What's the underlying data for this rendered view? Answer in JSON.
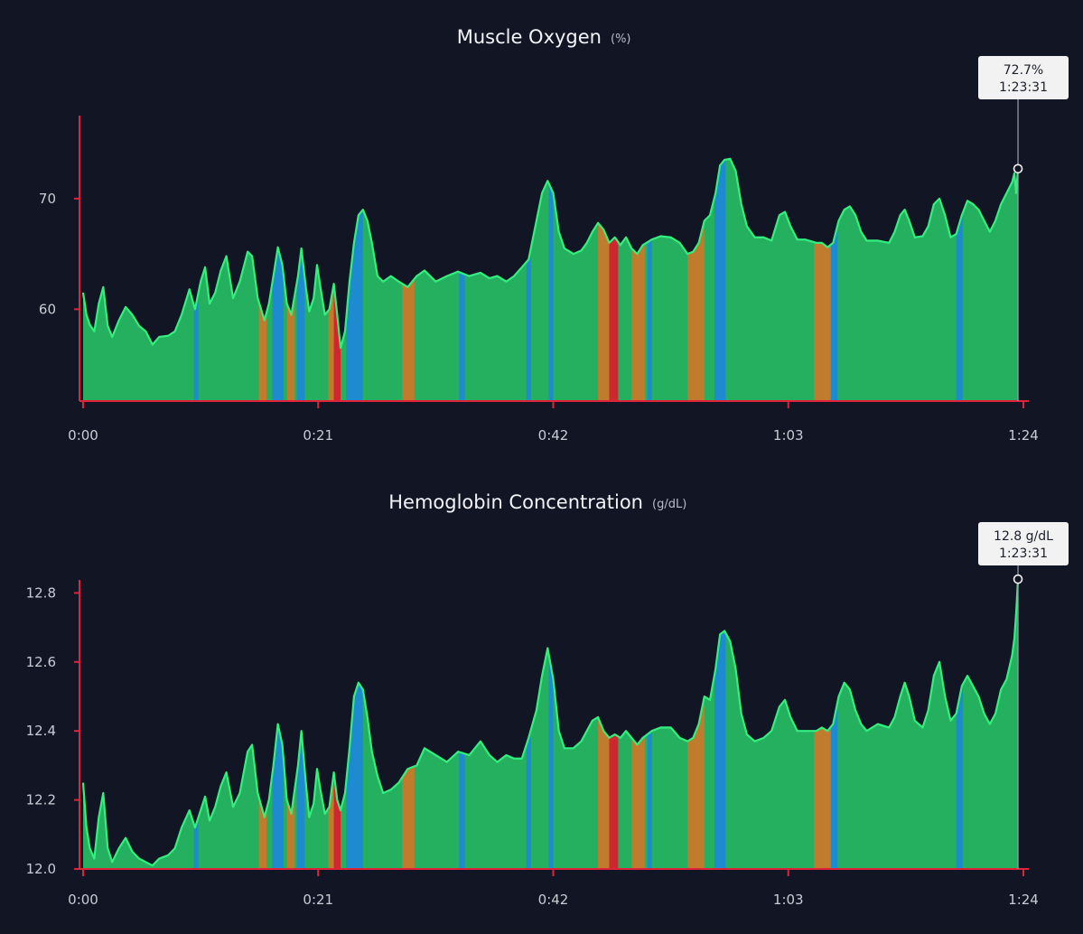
{
  "colors": {
    "background": "#121624",
    "axis": "#e0233b",
    "normal": "#25b060",
    "normal_line": "#33f07e",
    "blue": "#1e88d6",
    "orange": "#c8782a",
    "red": "#d9202c",
    "tooltip_bg": "#f2f2f2",
    "tick_text": "#c9ccd4"
  },
  "chart_data": [
    {
      "type": "area",
      "title": "Muscle Oxygen",
      "unit": "(%)",
      "x_unit": "minutes",
      "xlim": [
        0,
        84
      ],
      "ylim": [
        51.7,
        77.5
      ],
      "yticks": [
        60,
        70
      ],
      "ytick_labels": [
        "60",
        "70"
      ],
      "xticks": [
        0,
        21,
        42,
        63,
        84
      ],
      "xtick_labels": [
        "0:00",
        "0:21",
        "0:42",
        "1:03",
        "1:24"
      ],
      "grid": false,
      "tooltip": {
        "value": "72.7%",
        "time": "1:23:31",
        "x": 83.52,
        "y": 72.7
      },
      "points": [
        [
          0,
          61.5
        ],
        [
          0.3,
          59.5
        ],
        [
          0.6,
          58.6
        ],
        [
          1.0,
          58.0
        ],
        [
          1.4,
          60.5
        ],
        [
          1.8,
          62.0
        ],
        [
          2.2,
          58.5
        ],
        [
          2.6,
          57.5
        ],
        [
          3.2,
          59.0
        ],
        [
          3.8,
          60.2
        ],
        [
          4.4,
          59.5
        ],
        [
          5.0,
          58.5
        ],
        [
          5.6,
          58.0
        ],
        [
          6.2,
          56.8
        ],
        [
          6.8,
          57.5
        ],
        [
          7.6,
          57.6
        ],
        [
          8.2,
          58.0
        ],
        [
          8.8,
          59.5
        ],
        [
          9.5,
          61.8
        ],
        [
          10.0,
          60.0
        ],
        [
          10.5,
          62.5
        ],
        [
          10.9,
          63.8
        ],
        [
          11.3,
          60.5
        ],
        [
          11.8,
          61.5
        ],
        [
          12.3,
          63.5
        ],
        [
          12.8,
          64.8
        ],
        [
          13.4,
          61.0
        ],
        [
          14.0,
          62.5
        ],
        [
          14.7,
          65.2
        ],
        [
          15.1,
          64.8
        ],
        [
          15.6,
          61.0
        ],
        [
          16.2,
          59.0
        ],
        [
          16.6,
          60.5
        ],
        [
          17.0,
          63.0
        ],
        [
          17.4,
          65.6
        ],
        [
          17.8,
          64.0
        ],
        [
          18.2,
          60.5
        ],
        [
          18.6,
          59.5
        ],
        [
          19.2,
          63.0
        ],
        [
          19.5,
          65.5
        ],
        [
          19.9,
          62.0
        ],
        [
          20.2,
          59.8
        ],
        [
          20.6,
          61.0
        ],
        [
          20.9,
          64.0
        ],
        [
          21.2,
          62.0
        ],
        [
          21.6,
          59.5
        ],
        [
          22.0,
          60.0
        ],
        [
          22.4,
          62.3
        ],
        [
          22.7,
          59.5
        ],
        [
          23.0,
          56.5
        ],
        [
          23.4,
          58.0
        ],
        [
          23.8,
          62.5
        ],
        [
          24.2,
          66.0
        ],
        [
          24.6,
          68.5
        ],
        [
          25.0,
          69.0
        ],
        [
          25.4,
          68.0
        ],
        [
          25.8,
          66.0
        ],
        [
          26.3,
          63.0
        ],
        [
          26.8,
          62.5
        ],
        [
          27.5,
          63.0
        ],
        [
          28.2,
          62.5
        ],
        [
          29.0,
          62.0
        ],
        [
          29.8,
          63.0
        ],
        [
          30.5,
          63.5
        ],
        [
          31.5,
          62.5
        ],
        [
          32.5,
          63.0
        ],
        [
          33.5,
          63.4
        ],
        [
          34.5,
          63.0
        ],
        [
          35.5,
          63.3
        ],
        [
          36.3,
          62.8
        ],
        [
          37.0,
          63.0
        ],
        [
          37.8,
          62.5
        ],
        [
          38.5,
          63.0
        ],
        [
          39.2,
          63.8
        ],
        [
          39.8,
          64.5
        ],
        [
          40.5,
          68.0
        ],
        [
          41.0,
          70.5
        ],
        [
          41.5,
          71.6
        ],
        [
          42.0,
          70.5
        ],
        [
          42.5,
          67.0
        ],
        [
          43.0,
          65.5
        ],
        [
          43.8,
          65.0
        ],
        [
          44.5,
          65.3
        ],
        [
          45.0,
          66.0
        ],
        [
          45.5,
          67.0
        ],
        [
          46.0,
          67.8
        ],
        [
          46.5,
          67.2
        ],
        [
          47.0,
          66.0
        ],
        [
          47.5,
          66.5
        ],
        [
          48.0,
          65.8
        ],
        [
          48.5,
          66.5
        ],
        [
          49.0,
          65.5
        ],
        [
          49.5,
          65.0
        ],
        [
          50.0,
          65.8
        ],
        [
          50.8,
          66.3
        ],
        [
          51.6,
          66.6
        ],
        [
          52.5,
          66.5
        ],
        [
          53.3,
          66.0
        ],
        [
          54.0,
          65.0
        ],
        [
          54.5,
          65.2
        ],
        [
          55.0,
          66.0
        ],
        [
          55.5,
          68.0
        ],
        [
          56.0,
          68.5
        ],
        [
          56.5,
          70.5
        ],
        [
          56.9,
          73.0
        ],
        [
          57.3,
          73.5
        ],
        [
          57.8,
          73.6
        ],
        [
          58.3,
          72.5
        ],
        [
          58.8,
          69.5
        ],
        [
          59.3,
          67.5
        ],
        [
          60.0,
          66.5
        ],
        [
          60.8,
          66.5
        ],
        [
          61.5,
          66.2
        ],
        [
          62.2,
          68.5
        ],
        [
          62.7,
          68.8
        ],
        [
          63.2,
          67.5
        ],
        [
          63.8,
          66.3
        ],
        [
          64.5,
          66.3
        ],
        [
          65.5,
          66.0
        ],
        [
          66.0,
          66.0
        ],
        [
          66.5,
          65.6
        ],
        [
          67.0,
          66.0
        ],
        [
          67.5,
          68.0
        ],
        [
          68.0,
          69.0
        ],
        [
          68.5,
          69.3
        ],
        [
          69.0,
          68.5
        ],
        [
          69.5,
          67.0
        ],
        [
          70.0,
          66.2
        ],
        [
          71.0,
          66.2
        ],
        [
          72.0,
          66.0
        ],
        [
          72.5,
          67.0
        ],
        [
          73.0,
          68.5
        ],
        [
          73.4,
          69.0
        ],
        [
          73.8,
          68.0
        ],
        [
          74.3,
          66.5
        ],
        [
          75.0,
          66.6
        ],
        [
          75.5,
          67.5
        ],
        [
          76.0,
          69.5
        ],
        [
          76.5,
          70.0
        ],
        [
          77.0,
          68.5
        ],
        [
          77.5,
          66.5
        ],
        [
          78.0,
          66.8
        ],
        [
          78.5,
          68.5
        ],
        [
          79.0,
          69.8
        ],
        [
          79.5,
          69.5
        ],
        [
          80.0,
          69.0
        ],
        [
          80.5,
          68.0
        ],
        [
          81.0,
          67.0
        ],
        [
          81.5,
          68.0
        ],
        [
          82.0,
          69.5
        ],
        [
          82.5,
          70.5
        ],
        [
          83.0,
          71.5
        ],
        [
          83.2,
          72.3
        ],
        [
          83.35,
          70.5
        ],
        [
          83.52,
          72.7
        ]
      ]
    },
    {
      "type": "area",
      "title": "Hemoglobin Concentration",
      "unit": "(g/dL)",
      "x_unit": "minutes",
      "xlim": [
        0,
        84
      ],
      "ylim": [
        12.0,
        12.843
      ],
      "yticks": [
        12.0,
        12.2,
        12.4,
        12.6,
        12.8
      ],
      "ytick_labels": [
        "12.0",
        "12.2",
        "12.4",
        "12.6",
        "12.8"
      ],
      "xticks": [
        0,
        21,
        42,
        63,
        84
      ],
      "xtick_labels": [
        "0:00",
        "0:21",
        "0:42",
        "1:03",
        "1:24"
      ],
      "grid": false,
      "tooltip": {
        "value": "12.8 g/dL",
        "time": "1:23:31",
        "x": 83.52,
        "y": 12.84
      },
      "points": [
        [
          0,
          12.25
        ],
        [
          0.3,
          12.12
        ],
        [
          0.6,
          12.06
        ],
        [
          1.0,
          12.03
        ],
        [
          1.4,
          12.15
        ],
        [
          1.8,
          12.22
        ],
        [
          2.2,
          12.06
        ],
        [
          2.6,
          12.02
        ],
        [
          3.2,
          12.06
        ],
        [
          3.8,
          12.09
        ],
        [
          4.4,
          12.05
        ],
        [
          5.0,
          12.03
        ],
        [
          5.6,
          12.02
        ],
        [
          6.2,
          12.01
        ],
        [
          6.8,
          12.03
        ],
        [
          7.6,
          12.04
        ],
        [
          8.2,
          12.06
        ],
        [
          8.8,
          12.12
        ],
        [
          9.5,
          12.17
        ],
        [
          10.0,
          12.12
        ],
        [
          10.5,
          12.17
        ],
        [
          10.9,
          12.21
        ],
        [
          11.3,
          12.14
        ],
        [
          11.8,
          12.18
        ],
        [
          12.3,
          12.24
        ],
        [
          12.8,
          12.28
        ],
        [
          13.4,
          12.18
        ],
        [
          14.0,
          12.22
        ],
        [
          14.7,
          12.34
        ],
        [
          15.1,
          12.36
        ],
        [
          15.6,
          12.22
        ],
        [
          16.2,
          12.15
        ],
        [
          16.6,
          12.2
        ],
        [
          17.0,
          12.3
        ],
        [
          17.4,
          12.42
        ],
        [
          17.8,
          12.36
        ],
        [
          18.2,
          12.2
        ],
        [
          18.6,
          12.16
        ],
        [
          19.2,
          12.3
        ],
        [
          19.5,
          12.4
        ],
        [
          19.9,
          12.25
        ],
        [
          20.2,
          12.15
        ],
        [
          20.6,
          12.19
        ],
        [
          20.9,
          12.29
        ],
        [
          21.2,
          12.23
        ],
        [
          21.6,
          12.16
        ],
        [
          22.0,
          12.18
        ],
        [
          22.4,
          12.28
        ],
        [
          22.7,
          12.2
        ],
        [
          23.0,
          12.17
        ],
        [
          23.4,
          12.22
        ],
        [
          23.8,
          12.35
        ],
        [
          24.2,
          12.5
        ],
        [
          24.6,
          12.54
        ],
        [
          25.0,
          12.52
        ],
        [
          25.4,
          12.44
        ],
        [
          25.8,
          12.34
        ],
        [
          26.3,
          12.27
        ],
        [
          26.8,
          12.22
        ],
        [
          27.5,
          12.23
        ],
        [
          28.2,
          12.25
        ],
        [
          29.0,
          12.29
        ],
        [
          29.8,
          12.3
        ],
        [
          30.5,
          12.35
        ],
        [
          31.5,
          12.33
        ],
        [
          32.5,
          12.31
        ],
        [
          33.5,
          12.34
        ],
        [
          34.5,
          12.33
        ],
        [
          35.5,
          12.37
        ],
        [
          36.3,
          12.33
        ],
        [
          37.0,
          12.31
        ],
        [
          37.8,
          12.33
        ],
        [
          38.5,
          12.32
        ],
        [
          39.2,
          12.32
        ],
        [
          39.8,
          12.38
        ],
        [
          40.5,
          12.46
        ],
        [
          41.0,
          12.56
        ],
        [
          41.5,
          12.64
        ],
        [
          42.0,
          12.55
        ],
        [
          42.5,
          12.4
        ],
        [
          43.0,
          12.35
        ],
        [
          43.8,
          12.35
        ],
        [
          44.5,
          12.37
        ],
        [
          45.0,
          12.4
        ],
        [
          45.5,
          12.43
        ],
        [
          46.0,
          12.44
        ],
        [
          46.5,
          12.4
        ],
        [
          47.0,
          12.38
        ],
        [
          47.5,
          12.39
        ],
        [
          48.0,
          12.38
        ],
        [
          48.5,
          12.4
        ],
        [
          49.0,
          12.38
        ],
        [
          49.5,
          12.36
        ],
        [
          50.0,
          12.38
        ],
        [
          50.8,
          12.4
        ],
        [
          51.6,
          12.41
        ],
        [
          52.5,
          12.41
        ],
        [
          53.3,
          12.38
        ],
        [
          54.0,
          12.37
        ],
        [
          54.5,
          12.38
        ],
        [
          55.0,
          12.42
        ],
        [
          55.5,
          12.5
        ],
        [
          56.0,
          12.49
        ],
        [
          56.5,
          12.58
        ],
        [
          56.9,
          12.68
        ],
        [
          57.3,
          12.69
        ],
        [
          57.8,
          12.66
        ],
        [
          58.3,
          12.58
        ],
        [
          58.8,
          12.45
        ],
        [
          59.3,
          12.39
        ],
        [
          60.0,
          12.37
        ],
        [
          60.8,
          12.38
        ],
        [
          61.5,
          12.4
        ],
        [
          62.2,
          12.47
        ],
        [
          62.7,
          12.49
        ],
        [
          63.2,
          12.44
        ],
        [
          63.8,
          12.4
        ],
        [
          64.5,
          12.4
        ],
        [
          65.5,
          12.4
        ],
        [
          66.0,
          12.41
        ],
        [
          66.5,
          12.4
        ],
        [
          67.0,
          12.42
        ],
        [
          67.5,
          12.5
        ],
        [
          68.0,
          12.54
        ],
        [
          68.5,
          12.52
        ],
        [
          69.0,
          12.46
        ],
        [
          69.5,
          12.42
        ],
        [
          70.0,
          12.4
        ],
        [
          71.0,
          12.42
        ],
        [
          72.0,
          12.41
        ],
        [
          72.5,
          12.44
        ],
        [
          73.0,
          12.5
        ],
        [
          73.4,
          12.54
        ],
        [
          73.8,
          12.5
        ],
        [
          74.3,
          12.43
        ],
        [
          75.0,
          12.41
        ],
        [
          75.5,
          12.46
        ],
        [
          76.0,
          12.56
        ],
        [
          76.5,
          12.6
        ],
        [
          77.0,
          12.5
        ],
        [
          77.5,
          12.43
        ],
        [
          78.0,
          12.45
        ],
        [
          78.5,
          12.53
        ],
        [
          79.0,
          12.56
        ],
        [
          79.5,
          12.53
        ],
        [
          80.0,
          12.5
        ],
        [
          80.5,
          12.45
        ],
        [
          81.0,
          12.42
        ],
        [
          81.5,
          12.45
        ],
        [
          82.0,
          12.52
        ],
        [
          82.5,
          12.55
        ],
        [
          83.0,
          12.62
        ],
        [
          83.2,
          12.67
        ],
        [
          83.35,
          12.74
        ],
        [
          83.52,
          12.84
        ]
      ]
    }
  ],
  "zones": [
    {
      "from": 9.9,
      "to": 10.3,
      "color": "blue"
    },
    {
      "from": 15.7,
      "to": 16.4,
      "color": "orange"
    },
    {
      "from": 16.9,
      "to": 17.9,
      "color": "blue"
    },
    {
      "from": 18.2,
      "to": 18.9,
      "color": "orange"
    },
    {
      "from": 19.1,
      "to": 19.8,
      "color": "blue"
    },
    {
      "from": 21.9,
      "to": 22.4,
      "color": "orange"
    },
    {
      "from": 22.4,
      "to": 23.0,
      "color": "red"
    },
    {
      "from": 23.5,
      "to": 25.0,
      "color": "blue"
    },
    {
      "from": 28.5,
      "to": 29.6,
      "color": "orange"
    },
    {
      "from": 33.6,
      "to": 34.1,
      "color": "blue"
    },
    {
      "from": 39.6,
      "to": 40.0,
      "color": "blue"
    },
    {
      "from": 41.6,
      "to": 42.0,
      "color": "blue"
    },
    {
      "from": 46.0,
      "to": 47.0,
      "color": "orange"
    },
    {
      "from": 47.0,
      "to": 47.8,
      "color": "red"
    },
    {
      "from": 49.0,
      "to": 50.2,
      "color": "orange"
    },
    {
      "from": 50.4,
      "to": 50.8,
      "color": "blue"
    },
    {
      "from": 54.0,
      "to": 55.5,
      "color": "orange"
    },
    {
      "from": 56.4,
      "to": 57.4,
      "color": "blue"
    },
    {
      "from": 65.3,
      "to": 66.8,
      "color": "orange"
    },
    {
      "from": 66.8,
      "to": 67.4,
      "color": "blue"
    },
    {
      "from": 78.0,
      "to": 78.6,
      "color": "blue"
    }
  ]
}
